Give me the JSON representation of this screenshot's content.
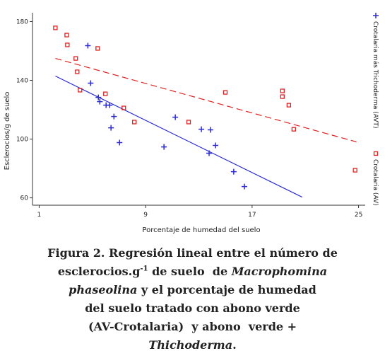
{
  "chart_data": {
    "type": "scatter",
    "x_label": "Porcentaje de humedad del suelo",
    "y_label": "Esclerocios/g de suelo",
    "xlim": [
      0.5,
      25.5
    ],
    "xticks": [
      1,
      9,
      17,
      25
    ],
    "ylim": [
      55,
      186
    ],
    "yticks": [
      60,
      100,
      140,
      180
    ],
    "series": [
      {
        "name": "Crotalaria más Trichoderma (AVT)",
        "color": "#2b2bd6",
        "marker": "plus",
        "x": [
          4.66,
          4.87,
          5.45,
          5.56,
          6.03,
          6.3,
          6.4,
          6.62,
          7.04,
          10.38,
          11.23,
          13.19,
          13.87,
          13.77,
          14.25,
          15.62,
          16.42
        ],
        "values": [
          163.6,
          138.1,
          128.4,
          125.5,
          123.1,
          123.1,
          107.7,
          115.4,
          97.6,
          94.7,
          114.9,
          106.7,
          106.3,
          90.4,
          95.7,
          77.8,
          67.7
        ]
      },
      {
        "name": "Crotalaria (AV)",
        "color": "#e02020",
        "marker": "square",
        "x": [
          2.22,
          3.07,
          3.12,
          3.75,
          3.86,
          4.07,
          5.4,
          5.98,
          7.36,
          8.15,
          12.23,
          14.99,
          19.28,
          19.28,
          19.76,
          20.13,
          24.74
        ],
        "values": [
          175.7,
          170.8,
          164.1,
          154.9,
          145.8,
          133.3,
          161.7,
          130.8,
          121.2,
          111.6,
          111.6,
          131.8,
          132.8,
          128.9,
          123.1,
          106.7,
          78.8
        ]
      }
    ],
    "regression_lines": [
      {
        "color": "#2b2bd6",
        "dashed": false,
        "x": [
          2.22,
          20.76
        ],
        "values": [
          142.9,
          60.5
        ]
      },
      {
        "color": "#e02020",
        "dashed": true,
        "x": [
          2.22,
          24.84
        ],
        "values": [
          154.9,
          98.1
        ]
      }
    ]
  },
  "caption": {
    "lines": [
      [
        {
          "text": "Figura 2. Regresión lineal entre el número de",
          "italic": false
        }
      ],
      [
        {
          "text": "esclerocios.g",
          "italic": false
        },
        {
          "text": "-1",
          "italic": false,
          "superscript": true
        },
        {
          "text": " de suelo  de ",
          "italic": false
        },
        {
          "text": "Macrophomina",
          "italic": true
        }
      ],
      [
        {
          "text": "phaseolina",
          "italic": true
        },
        {
          "text": " y el porcentaje de humedad",
          "italic": false
        }
      ],
      [
        {
          "text": "del suelo tratado con abono verde",
          "italic": false
        }
      ],
      [
        {
          "text": "(AV-Crotalaria)  y abono  verde +",
          "italic": false
        }
      ],
      [
        {
          "text": "Thichoderma",
          "italic": true
        },
        {
          "text": ".",
          "italic": false
        }
      ]
    ]
  }
}
